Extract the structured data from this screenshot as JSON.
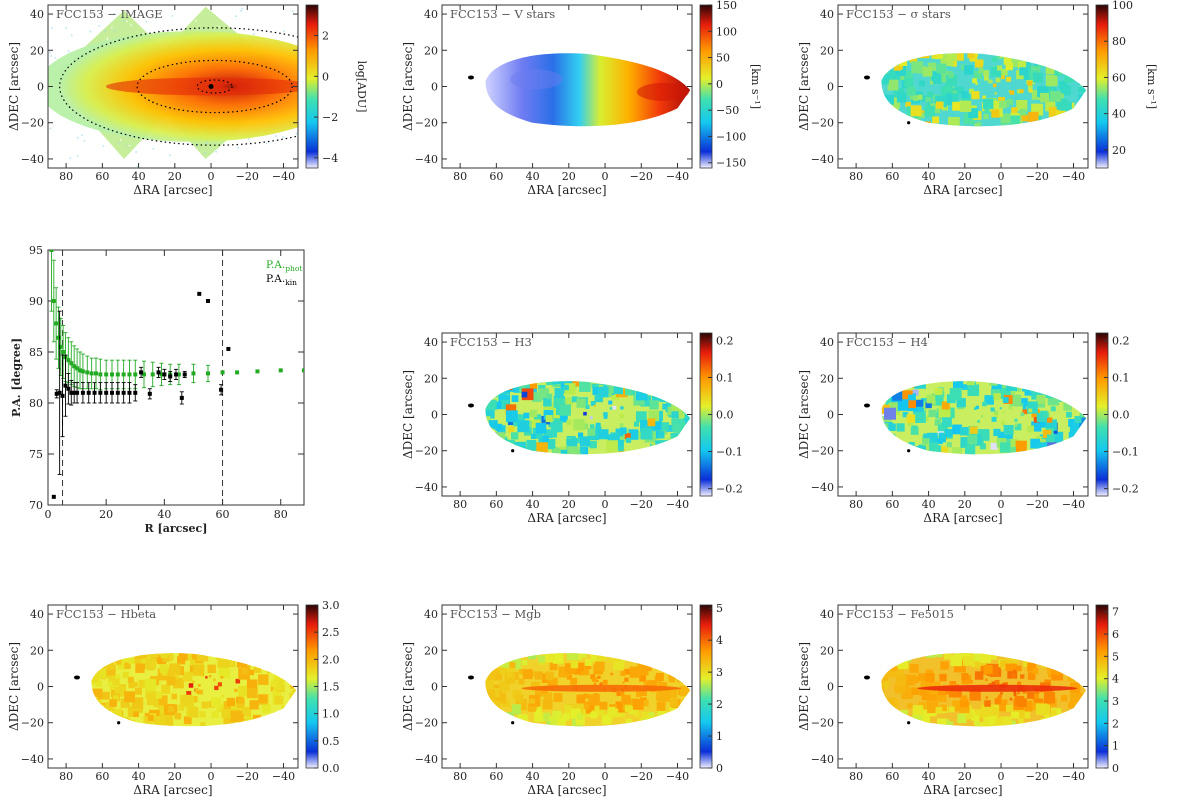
{
  "figure": {
    "galaxy": "FCC153",
    "colormap": "rainbow-cubehelix",
    "x_label": "ΔRA [arcsec]",
    "y_label": "ΔDEC [arcsec]",
    "x_ticks": [
      80,
      60,
      40,
      20,
      0,
      -20,
      -40
    ],
    "y_ticks": [
      40,
      20,
      0,
      -20,
      -40
    ]
  },
  "chart_data": [
    {
      "id": "image",
      "type": "heatmap",
      "title": "FCC153  − IMAGE",
      "xlabel": "ΔRA [arcsec]",
      "ylabel": "ΔDEC [arcsec]",
      "xlim": [
        90,
        -48
      ],
      "ylim": [
        -45,
        45
      ],
      "colorbar": {
        "label": "log[ADU]",
        "range": [
          -4.5,
          3.5
        ],
        "ticks": [
          2,
          0,
          -2,
          -4
        ]
      },
      "contours": "elliptical isophotes (dotted)"
    },
    {
      "id": "vstars",
      "type": "heatmap",
      "title": "FCC153  − V stars",
      "xlabel": "ΔRA [arcsec]",
      "ylabel": "ΔDEC [arcsec]",
      "xlim": [
        90,
        -48
      ],
      "ylim": [
        -45,
        45
      ],
      "colorbar": {
        "label": "[km s⁻¹]",
        "range": [
          -160,
          150
        ],
        "ticks": [
          150,
          100,
          50,
          0,
          -50,
          -100,
          -150
        ]
      }
    },
    {
      "id": "sigma",
      "type": "heatmap",
      "title": "FCC153  − σ stars",
      "xlabel": "ΔRA [arcsec]",
      "ylabel": "ΔDEC [arcsec]",
      "xlim": [
        90,
        -48
      ],
      "ylim": [
        -45,
        45
      ],
      "colorbar": {
        "label": "[km s⁻¹]",
        "range": [
          10,
          100
        ],
        "ticks": [
          100,
          80,
          60,
          40,
          20
        ]
      }
    },
    {
      "id": "pa",
      "type": "scatter",
      "xlabel": "R [arcsec]",
      "ylabel": "P.A. [degree]",
      "xlim": [
        0,
        88
      ],
      "ylim": [
        70,
        95
      ],
      "x_ticks": [
        0,
        20,
        40,
        60,
        80
      ],
      "y_ticks": [
        70,
        75,
        80,
        85,
        90,
        95
      ],
      "vlines": [
        5,
        60
      ],
      "legend": "top-right",
      "series": [
        {
          "name": "P.A.phot",
          "label_main": "P.A.",
          "label_sub": "phot",
          "color": "#22aa22",
          "x": [
            1.2,
            2.0,
            2.8,
            3.6,
            4.4,
            5.2,
            6.0,
            7.0,
            8.0,
            9.0,
            10.0,
            11.0,
            12.0,
            13.5,
            15.0,
            16.5,
            18.0,
            20.0,
            22.0,
            24.0,
            26.0,
            28.0,
            30.0,
            33.0,
            36.0,
            39.0,
            42.0,
            45.0,
            50.0,
            55.0,
            60.0,
            65.0,
            72.0,
            80.0,
            88.0
          ],
          "y": [
            95.0,
            90.0,
            87.8,
            86.4,
            85.5,
            85.0,
            84.5,
            84.2,
            83.9,
            83.6,
            83.4,
            83.2,
            83.1,
            83.0,
            82.9,
            82.9,
            82.8,
            82.8,
            82.8,
            82.8,
            82.8,
            82.8,
            82.8,
            82.8,
            82.8,
            82.8,
            82.8,
            82.8,
            82.9,
            82.9,
            83.0,
            83.0,
            83.1,
            83.2,
            83.2
          ],
          "err": [
            6,
            4,
            3.5,
            3,
            2.8,
            2.6,
            2.4,
            2.2,
            2.1,
            2.0,
            1.9,
            1.8,
            1.7,
            1.6,
            1.5,
            1.5,
            1.5,
            1.4,
            1.4,
            1.4,
            1.4,
            1.4,
            1.4,
            1.3,
            1.2,
            1.1,
            1.0,
            1.0,
            0.9,
            0.8,
            0,
            0,
            0,
            0,
            0
          ]
        },
        {
          "name": "P.A.kin",
          "label_main": "P.A.",
          "label_sub": "kin",
          "color": "#000000",
          "x": [
            2.0,
            3.0,
            4.0,
            5.0,
            6.0,
            7.0,
            8.0,
            9.0,
            10.0,
            12.0,
            14.0,
            16.0,
            18.0,
            20.0,
            22.0,
            24.0,
            26.0,
            28.0,
            30.0,
            32.0,
            35.0,
            38.0,
            40.0,
            42.0,
            44.0,
            46.0,
            47.0,
            52.0,
            55.0,
            59.5,
            62.0
          ],
          "y": [
            70.8,
            80.9,
            81.0,
            80.7,
            81.7,
            81.4,
            81.0,
            81.0,
            81.0,
            81.0,
            81.0,
            81.0,
            81.0,
            81.0,
            81.0,
            81.0,
            81.0,
            81.0,
            81.0,
            83.0,
            80.9,
            83.0,
            82.8,
            82.6,
            82.8,
            80.5,
            82.8,
            90.7,
            90.0,
            81.3,
            85.3
          ],
          "err": [
            0,
            0.4,
            8,
            4,
            3,
            1.5,
            1.2,
            1.0,
            1.0,
            1.0,
            1.0,
            1.0,
            1.0,
            1.0,
            1.0,
            1.0,
            1.0,
            1.0,
            0.8,
            0.5,
            0.5,
            0.5,
            0.5,
            0.5,
            0.5,
            0.6,
            0.3,
            0,
            0,
            0.5,
            0
          ]
        }
      ]
    },
    {
      "id": "h3",
      "type": "heatmap",
      "title": "FCC153  − H3",
      "xlabel": "ΔRA [arcsec]",
      "ylabel": "ΔDEC [arcsec]",
      "xlim": [
        90,
        -48
      ],
      "ylim": [
        -45,
        45
      ],
      "colorbar": {
        "label": "",
        "range": [
          -0.22,
          0.22
        ],
        "ticks": [
          0.2,
          0.1,
          0.0,
          -0.1,
          -0.2
        ]
      }
    },
    {
      "id": "h4",
      "type": "heatmap",
      "title": "FCC153  − H4",
      "xlabel": "ΔRA [arcsec]",
      "ylabel": "ΔDEC [arcsec]",
      "xlim": [
        90,
        -48
      ],
      "ylim": [
        -45,
        45
      ],
      "colorbar": {
        "label": "",
        "range": [
          -0.22,
          0.22
        ],
        "ticks": [
          0.2,
          0.1,
          0.0,
          -0.1,
          -0.2
        ]
      }
    },
    {
      "id": "hbeta",
      "type": "heatmap",
      "title": "FCC153  − Hbeta",
      "xlabel": "ΔRA [arcsec]",
      "ylabel": "ΔDEC [arcsec]",
      "xlim": [
        90,
        -48
      ],
      "ylim": [
        -45,
        45
      ],
      "colorbar": {
        "label": "",
        "range": [
          0,
          3
        ],
        "ticks": [
          3.0,
          2.5,
          2.0,
          1.5,
          1.0,
          0.5,
          0.0
        ]
      }
    },
    {
      "id": "mgb",
      "type": "heatmap",
      "title": "FCC153  − Mgb",
      "xlabel": "ΔRA [arcsec]",
      "ylabel": "ΔDEC [arcsec]",
      "xlim": [
        90,
        -48
      ],
      "ylim": [
        -45,
        45
      ],
      "colorbar": {
        "label": "",
        "range": [
          0,
          5.1
        ],
        "ticks": [
          5,
          4,
          3,
          2,
          1,
          0
        ]
      }
    },
    {
      "id": "fe5015",
      "type": "heatmap",
      "title": "FCC153  − Fe5015",
      "xlabel": "ΔRA [arcsec]",
      "ylabel": "ΔDEC [arcsec]",
      "xlim": [
        90,
        -48
      ],
      "ylim": [
        -45,
        45
      ],
      "colorbar": {
        "label": "",
        "range": [
          0,
          7.3
        ],
        "ticks": [
          7,
          6,
          5,
          4,
          3,
          2,
          1,
          0
        ]
      }
    }
  ]
}
